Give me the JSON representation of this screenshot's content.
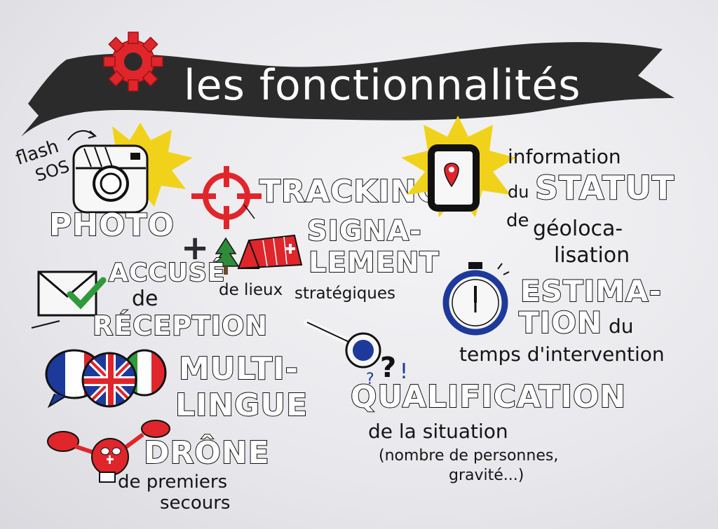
{
  "banner": {
    "title": "les fonctionnalités"
  },
  "features": {
    "photo": {
      "note_line1": "flash",
      "note_line2": "SOS",
      "label": "PHOTO"
    },
    "tracking": {
      "label": "TRACKING"
    },
    "signalement": {
      "line1": "SIGNA-",
      "line2": "LEMENT",
      "sub_left": "de lieux",
      "sub_right": "stratégiques"
    },
    "accuse": {
      "line1": "ACCUSÉ",
      "line2": "de",
      "line3": "RÉCEPTION"
    },
    "multilingue": {
      "line1": "MULTI-",
      "line2": "LINGUE"
    },
    "drone": {
      "label": "DRÔNE",
      "sub1": "de premiers",
      "sub2": "secours"
    },
    "statut": {
      "line1": "information",
      "line2": "du",
      "line3": "STATUT",
      "line4": "de",
      "line5": "géoloca-",
      "line6": "lisation"
    },
    "estimation": {
      "line1": "ESTIMA-",
      "line2": "TION",
      "line2b": "du",
      "line3": "temps d'intervention"
    },
    "qualification": {
      "label": "QUALIFICATION",
      "sub1": "de la situation",
      "sub2": "(nombre de personnes,",
      "sub3": "gravité...)"
    }
  },
  "colors": {
    "banner": "#2b2b2b",
    "accent_red": "#e0262b",
    "sun_yellow": "#f1d21a",
    "check_green": "#2f9a3a",
    "blue": "#1d3a9a",
    "ink": "#151515"
  }
}
